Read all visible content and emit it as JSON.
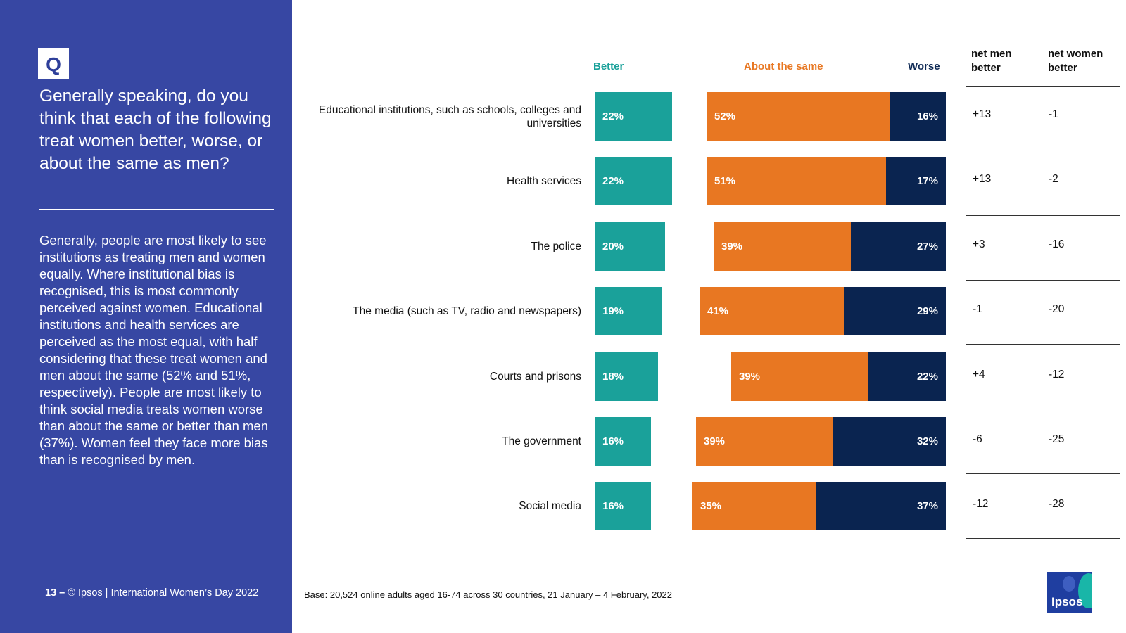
{
  "sidebar": {
    "badge": "Q",
    "question": "Generally speaking, do you think that each of the following treat women better, worse, or about the same as men?",
    "summary": "Generally, people are most likely to see institutions as treating men and women equally. Where institutional bias is recognised, this is most commonly perceived against women. Educational institutions and health services are perceived as the most equal, with half considering that these treat women and men about the same (52% and 51%, respectively). People are most likely to think social media treats women worse than about the same or better than men (37%). Women feel they face more bias than is recognised by men.",
    "page_number": "13 –",
    "footer": "© Ipsos | International Women’s Day 2022"
  },
  "base_note": "Base: 20,524 online adults aged 16-74 across 30 countries, 21 January – 4 February, 2022",
  "logo_text": "Ipsos",
  "colors": {
    "sidebar": "#3747a3",
    "better": "#1aa19a",
    "same": "#e87722",
    "worse": "#0a2450"
  },
  "chart_data": {
    "type": "bar",
    "stacking": "diverging",
    "headers": {
      "better": "Better",
      "same": "About the same",
      "worse": "Worse",
      "net_men": "net men better",
      "net_women": "net women better"
    },
    "categories": [
      "Educational institutions, such as schools, colleges and universities",
      "Health services",
      "The police",
      "The media (such as TV, radio and newspapers)",
      "Courts and prisons",
      "The government",
      "Social media"
    ],
    "series": [
      {
        "name": "Better",
        "values": [
          22,
          22,
          20,
          19,
          18,
          16,
          16
        ]
      },
      {
        "name": "About the same",
        "values": [
          52,
          51,
          39,
          41,
          39,
          39,
          35
        ]
      },
      {
        "name": "Worse",
        "values": [
          16,
          17,
          27,
          29,
          22,
          32,
          37
        ]
      }
    ],
    "net_men_better": [
      "+13",
      "+13",
      "+3",
      "-1",
      "+4",
      "-6",
      "-12"
    ],
    "net_women_better": [
      "-1",
      "-2",
      "-16",
      "-20",
      "-12",
      "-25",
      "-28"
    ]
  }
}
